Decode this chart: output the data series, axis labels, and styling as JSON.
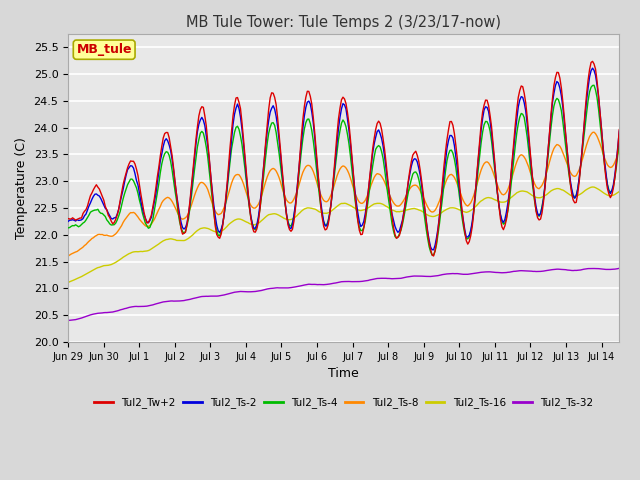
{
  "title": "MB Tule Tower: Tule Temps 2 (3/23/17-now)",
  "xlabel": "Time",
  "ylabel": "Temperature (C)",
  "ylim": [
    20.0,
    25.75
  ],
  "yticks": [
    20.0,
    20.5,
    21.0,
    21.5,
    22.0,
    22.5,
    23.0,
    23.5,
    24.0,
    24.5,
    25.0,
    25.5
  ],
  "xtick_labels": [
    "Jun 29",
    "Jun 30",
    "Jul 1",
    "Jul 2",
    "Jul 3",
    "Jul 4",
    "Jul 5",
    "Jul 6",
    "Jul 7",
    "Jul 8",
    "Jul 9",
    "Jul 10",
    "Jul 11",
    "Jul 12",
    "Jul 13",
    "Jul 14"
  ],
  "legend_box_label": "MB_tule",
  "legend_box_color": "#cc0000",
  "legend_box_bg": "#ffff99",
  "series_labels": [
    "Tul2_Tw+2",
    "Tul2_Ts-2",
    "Tul2_Ts-4",
    "Tul2_Ts-8",
    "Tul2_Ts-16",
    "Tul2_Ts-32"
  ],
  "series_colors": [
    "#dd0000",
    "#0000dd",
    "#00bb00",
    "#ff8800",
    "#cccc00",
    "#9900cc"
  ],
  "background_color": "#d8d8d8",
  "plot_bg_color": "#e8e8e8",
  "grid_color": "#ffffff"
}
